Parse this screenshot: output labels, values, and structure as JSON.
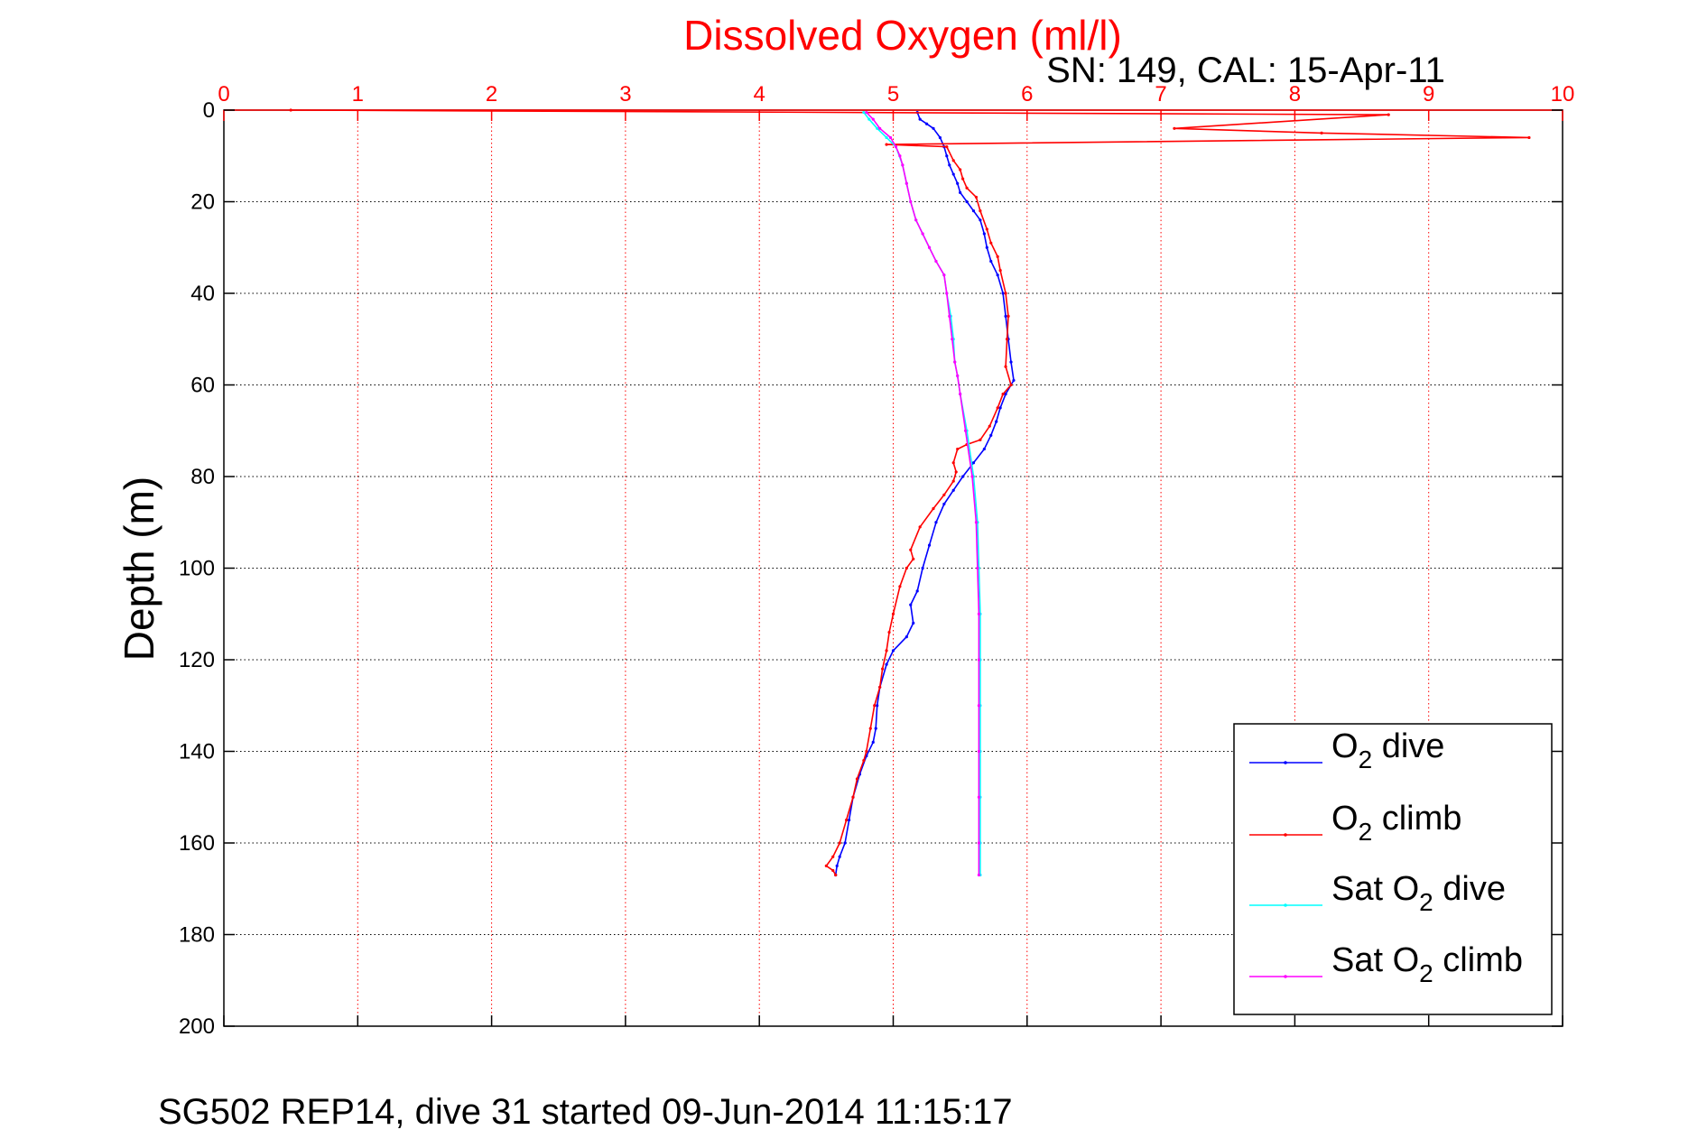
{
  "chart_data": {
    "type": "line",
    "title": "Dissolved Oxygen (ml/l)",
    "subtitle": "SN: 149, CAL: 15-Apr-11",
    "ylabel": "Depth (m)",
    "xlim": [
      0,
      10
    ],
    "ylim": [
      0,
      200
    ],
    "y_reversed": true,
    "x_axis_position": "top",
    "x_ticks": [
      0,
      1,
      2,
      3,
      4,
      5,
      6,
      7,
      8,
      9,
      10
    ],
    "y_ticks": [
      0,
      20,
      40,
      60,
      80,
      100,
      120,
      140,
      160,
      180,
      200
    ],
    "grid": true,
    "legend_position": "bottom-right",
    "legend": [
      {
        "label_main": "O",
        "label_sub": "2",
        "label_rest": " dive"
      },
      {
        "label_main": "O",
        "label_sub": "2",
        "label_rest": " climb"
      },
      {
        "label_main": "Sat O",
        "label_sub": "2",
        "label_rest": " dive"
      },
      {
        "label_main": "Sat O",
        "label_sub": "2",
        "label_rest": " climb"
      }
    ],
    "series": [
      {
        "name": "O2 dive",
        "color": "#0000ff",
        "points": [
          [
            5.18,
            0.5
          ],
          [
            5.2,
            2
          ],
          [
            5.25,
            3
          ],
          [
            5.3,
            4
          ],
          [
            5.35,
            6
          ],
          [
            5.38,
            8
          ],
          [
            5.4,
            10
          ],
          [
            5.42,
            12
          ],
          [
            5.45,
            14
          ],
          [
            5.48,
            16
          ],
          [
            5.5,
            18
          ],
          [
            5.55,
            20
          ],
          [
            5.6,
            22
          ],
          [
            5.65,
            24
          ],
          [
            5.68,
            27
          ],
          [
            5.7,
            30
          ],
          [
            5.73,
            33
          ],
          [
            5.78,
            36
          ],
          [
            5.82,
            40
          ],
          [
            5.84,
            45
          ],
          [
            5.86,
            50
          ],
          [
            5.88,
            55
          ],
          [
            5.9,
            59
          ],
          [
            5.84,
            62
          ],
          [
            5.8,
            65
          ],
          [
            5.77,
            68
          ],
          [
            5.73,
            71
          ],
          [
            5.68,
            74
          ],
          [
            5.6,
            77
          ],
          [
            5.52,
            80
          ],
          [
            5.45,
            83
          ],
          [
            5.38,
            86
          ],
          [
            5.32,
            90
          ],
          [
            5.27,
            95
          ],
          [
            5.22,
            100
          ],
          [
            5.18,
            105
          ],
          [
            5.13,
            108
          ],
          [
            5.15,
            112
          ],
          [
            5.1,
            115
          ],
          [
            5.0,
            118
          ],
          [
            4.95,
            121
          ],
          [
            4.9,
            126
          ],
          [
            4.88,
            130
          ],
          [
            4.87,
            135
          ],
          [
            4.85,
            138
          ],
          [
            4.8,
            141
          ],
          [
            4.75,
            145
          ],
          [
            4.7,
            150
          ],
          [
            4.67,
            155
          ],
          [
            4.64,
            160
          ],
          [
            4.6,
            163
          ],
          [
            4.58,
            165
          ],
          [
            4.57,
            167
          ]
        ]
      },
      {
        "name": "O2 climb",
        "color": "#ff0000",
        "points": [
          [
            4.57,
            167
          ],
          [
            4.55,
            166
          ],
          [
            4.5,
            165
          ],
          [
            4.55,
            163
          ],
          [
            4.6,
            160
          ],
          [
            4.65,
            155
          ],
          [
            4.7,
            150
          ],
          [
            4.73,
            146
          ],
          [
            4.78,
            142
          ],
          [
            4.8,
            140
          ],
          [
            4.83,
            135
          ],
          [
            4.86,
            130
          ],
          [
            4.9,
            126
          ],
          [
            4.92,
            122
          ],
          [
            4.95,
            118
          ],
          [
            4.97,
            114
          ],
          [
            5.0,
            110
          ],
          [
            5.05,
            104
          ],
          [
            5.1,
            100
          ],
          [
            5.15,
            98
          ],
          [
            5.13,
            96
          ],
          [
            5.2,
            91
          ],
          [
            5.3,
            87
          ],
          [
            5.38,
            84
          ],
          [
            5.45,
            81
          ],
          [
            5.47,
            79
          ],
          [
            5.45,
            77
          ],
          [
            5.48,
            74
          ],
          [
            5.55,
            73
          ],
          [
            5.65,
            72
          ],
          [
            5.72,
            69
          ],
          [
            5.78,
            65
          ],
          [
            5.82,
            62
          ],
          [
            5.88,
            60
          ],
          [
            5.84,
            56
          ],
          [
            5.85,
            50
          ],
          [
            5.86,
            45
          ],
          [
            5.84,
            40
          ],
          [
            5.8,
            35
          ],
          [
            5.78,
            32
          ],
          [
            5.73,
            29
          ],
          [
            5.7,
            26
          ],
          [
            5.65,
            22
          ],
          [
            5.62,
            19
          ],
          [
            5.55,
            17
          ],
          [
            5.52,
            15
          ],
          [
            5.5,
            13
          ],
          [
            5.45,
            11
          ],
          [
            5.4,
            8
          ],
          [
            4.95,
            7.5
          ],
          [
            9.75,
            6
          ],
          [
            8.2,
            5
          ],
          [
            7.1,
            4
          ],
          [
            8.7,
            1
          ],
          [
            0.5,
            0
          ]
        ]
      },
      {
        "name": "Sat O2 dive",
        "color": "#00ffff",
        "points": [
          [
            4.78,
            0.5
          ],
          [
            4.82,
            2
          ],
          [
            4.88,
            4
          ],
          [
            4.95,
            6
          ],
          [
            5.02,
            8
          ],
          [
            5.07,
            12
          ],
          [
            5.1,
            16
          ],
          [
            5.13,
            20
          ],
          [
            5.17,
            24
          ],
          [
            5.22,
            27
          ],
          [
            5.27,
            30
          ],
          [
            5.32,
            33
          ],
          [
            5.38,
            36
          ],
          [
            5.4,
            40
          ],
          [
            5.43,
            45
          ],
          [
            5.45,
            50
          ],
          [
            5.46,
            55
          ],
          [
            5.48,
            58
          ],
          [
            5.5,
            62
          ],
          [
            5.55,
            70
          ],
          [
            5.6,
            80
          ],
          [
            5.63,
            90
          ],
          [
            5.64,
            100
          ],
          [
            5.65,
            110
          ],
          [
            5.65,
            120
          ],
          [
            5.65,
            130
          ],
          [
            5.65,
            140
          ],
          [
            5.65,
            150
          ],
          [
            5.65,
            160
          ],
          [
            5.65,
            167
          ]
        ]
      },
      {
        "name": "Sat O2 climb",
        "color": "#ff00ff",
        "points": [
          [
            5.64,
            167
          ],
          [
            5.64,
            160
          ],
          [
            5.64,
            150
          ],
          [
            5.64,
            140
          ],
          [
            5.64,
            130
          ],
          [
            5.64,
            120
          ],
          [
            5.64,
            110
          ],
          [
            5.63,
            100
          ],
          [
            5.62,
            90
          ],
          [
            5.59,
            80
          ],
          [
            5.54,
            70
          ],
          [
            5.5,
            62
          ],
          [
            5.48,
            58
          ],
          [
            5.46,
            55
          ],
          [
            5.44,
            50
          ],
          [
            5.42,
            45
          ],
          [
            5.4,
            40
          ],
          [
            5.38,
            36
          ],
          [
            5.32,
            33
          ],
          [
            5.27,
            30
          ],
          [
            5.22,
            27
          ],
          [
            5.17,
            24
          ],
          [
            5.13,
            20
          ],
          [
            5.1,
            16
          ],
          [
            5.07,
            12
          ],
          [
            5.05,
            10
          ],
          [
            5.02,
            8
          ],
          [
            4.98,
            6
          ],
          [
            4.9,
            4
          ],
          [
            4.85,
            2
          ],
          [
            4.8,
            0.5
          ]
        ]
      }
    ]
  },
  "footer": "SG502 REP14, dive 31 started 09-Jun-2014 11:15:17"
}
